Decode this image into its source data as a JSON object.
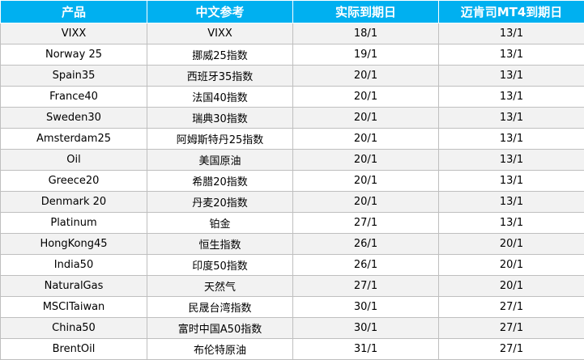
{
  "table": {
    "headers": [
      "产品",
      "中文参考",
      "实际到期日",
      "迈肯司MT4到期日"
    ],
    "rows": [
      [
        "VIXX",
        "VIXX",
        "18/1",
        "13/1"
      ],
      [
        "Norway 25",
        "挪威25指数",
        "19/1",
        "13/1"
      ],
      [
        "Spain35",
        "西班牙35指数",
        "20/1",
        "13/1"
      ],
      [
        "France40",
        "法国40指数",
        "20/1",
        "13/1"
      ],
      [
        "Sweden30",
        "瑞典30指数",
        "20/1",
        "13/1"
      ],
      [
        "Amsterdam25",
        "阿姆斯特丹25指数",
        "20/1",
        "13/1"
      ],
      [
        "Oil",
        "美国原油",
        "20/1",
        "13/1"
      ],
      [
        "Greece20",
        "希腊20指数",
        "20/1",
        "13/1"
      ],
      [
        "Denmark 20",
        "丹麦20指数",
        "20/1",
        "13/1"
      ],
      [
        "Platinum",
        "铂金",
        "27/1",
        "13/1"
      ],
      [
        "HongKong45",
        "恒生指数",
        "26/1",
        "20/1"
      ],
      [
        "India50",
        "印度50指数",
        "26/1",
        "20/1"
      ],
      [
        "NaturalGas",
        "天然气",
        "27/1",
        "20/1"
      ],
      [
        "MSCITaiwan",
        "民晟台湾指数",
        "30/1",
        "27/1"
      ],
      [
        "China50",
        "富时中国A50指数",
        "30/1",
        "27/1"
      ],
      [
        "BrentOil",
        "布伦特原油",
        "31/1",
        "27/1"
      ]
    ]
  },
  "colors": {
    "header_bg": "#00b0f0",
    "header_text": "#ffffff",
    "row_odd_bg": "#f2f2f2",
    "row_even_bg": "#ffffff",
    "border": "#bfbfbf"
  }
}
